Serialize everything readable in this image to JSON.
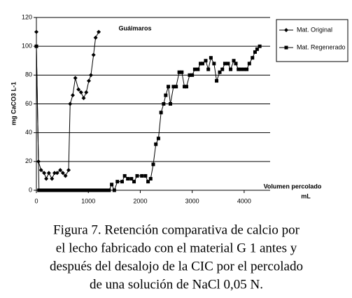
{
  "chart_data": {
    "type": "line",
    "title": "Guáimaros",
    "y_label": "mg CaCO3 L-1",
    "x_label": [
      "Volumen percolado",
      "mL"
    ],
    "xlim": [
      0,
      4500
    ],
    "ylim": [
      0,
      120
    ],
    "xticks": [
      0,
      1000,
      2000,
      3000,
      4000
    ],
    "yticks": [
      0,
      20,
      40,
      60,
      80,
      100,
      120
    ],
    "grid": true,
    "series": [
      {
        "name": "Mat. Original",
        "color": "#000000",
        "marker": "diamond",
        "x": [
          0,
          0,
          40,
          90,
          150,
          190,
          240,
          300,
          350,
          400,
          460,
          510,
          560,
          620,
          650,
          700,
          750,
          810,
          860,
          910,
          960,
          1010,
          1050,
          1100,
          1140,
          1200
        ],
        "values": [
          110,
          100,
          20,
          14,
          12,
          8,
          12,
          8,
          12,
          12,
          14,
          12,
          10,
          14,
          60,
          66,
          78,
          70,
          68,
          64,
          68,
          76,
          80,
          94,
          106,
          110
        ]
      },
      {
        "name": "Mat. Regenerado",
        "color": "#000000",
        "marker": "square",
        "x": [
          0,
          50,
          100,
          150,
          200,
          250,
          300,
          350,
          400,
          450,
          500,
          550,
          600,
          650,
          700,
          750,
          800,
          850,
          900,
          950,
          1000,
          1050,
          1100,
          1150,
          1200,
          1250,
          1300,
          1350,
          1400,
          1450,
          1500,
          1560,
          1650,
          1700,
          1760,
          1830,
          1880,
          1940,
          2030,
          2100,
          2150,
          2200,
          2250,
          2300,
          2350,
          2400,
          2450,
          2490,
          2540,
          2580,
          2640,
          2690,
          2750,
          2800,
          2850,
          2890,
          2950,
          3000,
          3050,
          3110,
          3160,
          3200,
          3260,
          3310,
          3360,
          3420,
          3470,
          3530,
          3580,
          3630,
          3690,
          3740,
          3800,
          3840,
          3890,
          3940,
          4000,
          4050,
          4100,
          4160,
          4210,
          4250,
          4300
        ],
        "values": [
          100,
          0,
          0,
          0,
          0,
          0,
          0,
          0,
          0,
          0,
          0,
          0,
          0,
          0,
          0,
          0,
          0,
          0,
          0,
          0,
          0,
          0,
          0,
          0,
          0,
          0,
          0,
          0,
          0,
          4,
          0,
          6,
          6,
          10,
          8,
          8,
          6,
          10,
          10,
          10,
          6,
          8,
          18,
          32,
          36,
          54,
          60,
          66,
          72,
          60,
          72,
          72,
          82,
          82,
          72,
          72,
          80,
          80,
          84,
          84,
          88,
          88,
          90,
          84,
          92,
          88,
          76,
          82,
          84,
          88,
          88,
          84,
          90,
          88,
          84,
          84,
          84,
          84,
          88,
          92,
          96,
          98,
          100
        ]
      }
    ]
  },
  "caption": [
    "Figura 7. Retención comparativa de calcio por",
    "el lecho fabricado con el material G 1 antes y",
    "después del desalojo de la CIC por el percolado",
    "de una solución de NaCl 0,05 N."
  ]
}
